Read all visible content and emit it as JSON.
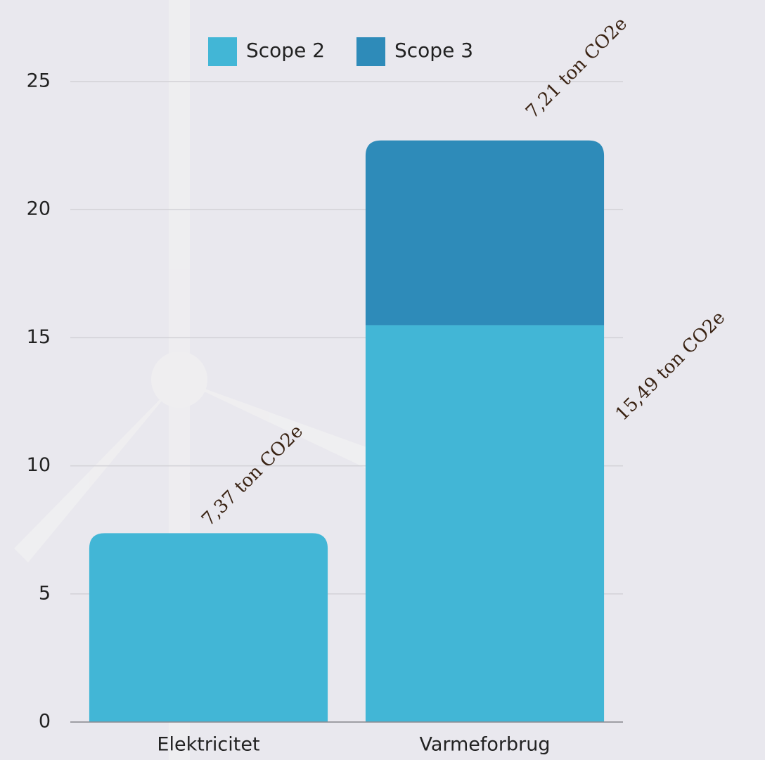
{
  "chart_data": {
    "type": "stacked_bar",
    "categories": [
      "Elektricitet",
      "Varmeforbrug"
    ],
    "series": [
      {
        "name": "Scope 2",
        "color": "#42b6d6",
        "values": [
          7.37,
          15.49
        ],
        "value_labels": [
          "7,37 ton CO2e",
          "15,49 ton CO2e"
        ]
      },
      {
        "name": "Scope 3",
        "color": "#2e8bb9",
        "values": [
          0,
          7.21
        ],
        "value_labels": [
          null,
          "7,21 ton CO2e"
        ]
      }
    ],
    "ylim": [
      0,
      25
    ],
    "yticks": [
      0,
      5,
      10,
      15,
      20,
      25
    ],
    "grid": true
  }
}
